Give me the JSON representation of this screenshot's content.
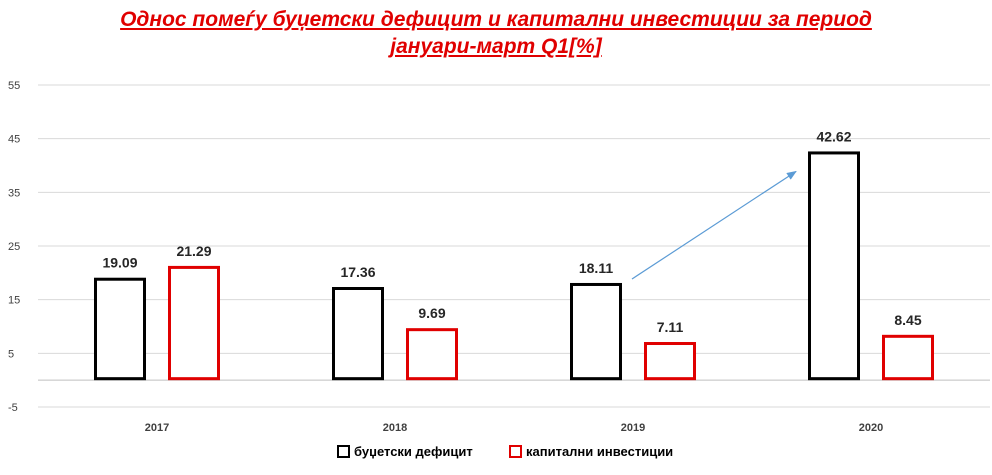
{
  "chart_data": {
    "type": "bar",
    "title_lines": [
      "Однос помеѓу буџетски дефицит и капитални инвестиции за период",
      "јануари-март Q1[%]"
    ],
    "categories": [
      "2017",
      "2018",
      "2019",
      "2020"
    ],
    "series": [
      {
        "name": "буџетски дефицит",
        "values": [
          19.09,
          17.36,
          18.11,
          42.62
        ],
        "color": "#000000"
      },
      {
        "name": "капитални инвестиции",
        "values": [
          21.29,
          9.69,
          7.11,
          8.45
        ],
        "color": "#e00000"
      }
    ],
    "y_ticks": [
      "55",
      "45",
      "35",
      "25",
      "15",
      "5",
      "-5"
    ],
    "y_tick_values": [
      55,
      45,
      35,
      25,
      15,
      5,
      -5
    ],
    "ylim": [
      -5,
      55
    ],
    "value_labels": [
      [
        "19.09",
        "17.36",
        "18.11",
        "42.62"
      ],
      [
        "21.29",
        "9.69",
        "7.11",
        "8.45"
      ]
    ],
    "grid": "horizontal",
    "legend_position": "bottom",
    "annotation": "arrow from 2019 budget deficit to 2020 budget deficit",
    "arrow_color": "#5b9bd5"
  }
}
